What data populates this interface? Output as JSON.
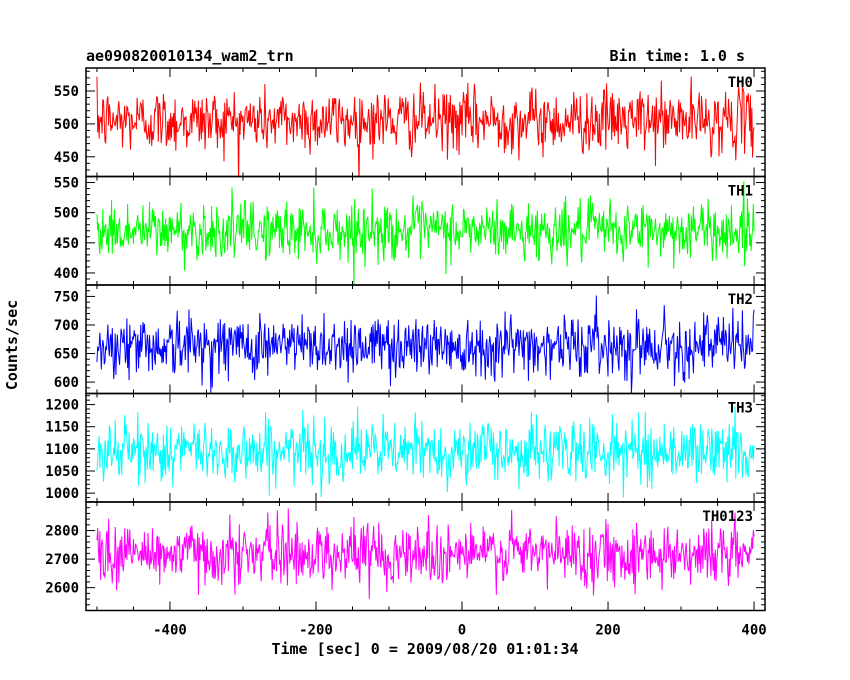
{
  "chart_data": {
    "type": "line",
    "title": "ae090820010134_wam2_trn",
    "bin_time_label": "Bin time: 1.0 s",
    "xlabel": "Time [sec] 0 = 2009/08/20 01:01:34",
    "ylabel": "Counts/sec",
    "xlim": [
      -515,
      415
    ],
    "x_range": [
      -500,
      400
    ],
    "x_ticks": [
      -400,
      -200,
      0,
      200,
      400
    ],
    "panels": [
      {
        "name": "TH0",
        "color": "#ff0000",
        "ylim": [
          420,
          585
        ],
        "y_ticks": [
          450,
          500,
          550
        ],
        "mean": 505,
        "sigma": 24
      },
      {
        "name": "TH1",
        "color": "#00ff00",
        "ylim": [
          380,
          560
        ],
        "y_ticks": [
          400,
          450,
          500,
          550
        ],
        "mean": 470,
        "sigma": 24
      },
      {
        "name": "TH2",
        "color": "#0000ff",
        "ylim": [
          580,
          770
        ],
        "y_ticks": [
          600,
          650,
          700,
          750
        ],
        "mean": 665,
        "sigma": 27
      },
      {
        "name": "TH3",
        "color": "#00ffff",
        "ylim": [
          980,
          1225
        ],
        "y_ticks": [
          1000,
          1050,
          1100,
          1150,
          1200
        ],
        "mean": 1095,
        "sigma": 35
      },
      {
        "name": "TH0123",
        "color": "#ff00ff",
        "ylim": [
          2520,
          2900
        ],
        "y_ticks": [
          2600,
          2700,
          2800
        ],
        "mean": 2720,
        "sigma": 55
      }
    ]
  }
}
